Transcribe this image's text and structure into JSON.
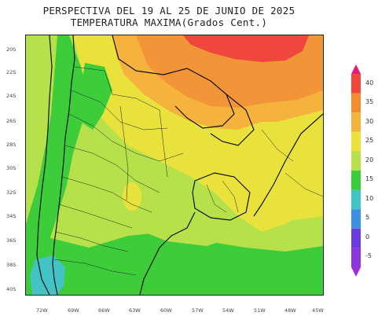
{
  "title": {
    "line1": "PERSPECTIVA DEL 19 AL 25 DE JUNIO DE 2025",
    "line2": "TEMPERATURA MAXIMA(Grados Cent.)"
  },
  "latitude_labels": [
    "20S",
    "22S",
    "24S",
    "26S",
    "28S",
    "30S",
    "32S",
    "34S",
    "36S",
    "38S",
    "40S"
  ],
  "longitude_labels": [
    "72W",
    "69W",
    "66W",
    "63W",
    "60W",
    "57W",
    "54W",
    "51W",
    "48W",
    "45W"
  ],
  "colorbar": {
    "labels": [
      "40",
      "35",
      "30",
      "25",
      "20",
      "15",
      "10",
      "5",
      "0",
      "-5"
    ],
    "colors": [
      "#e6197a",
      "#f0473c",
      "#f28c2f",
      "#f2b43c",
      "#e9e23d",
      "#b7e14a",
      "#3dcc3a",
      "#42c4c4",
      "#3d8fe3",
      "#6a3ce0",
      "#a02fd8"
    ]
  },
  "field_colors": {
    "hot": "#f0473c",
    "orange": "#f29538",
    "light_orange": "#f5b23c",
    "yellow": "#e9e23d",
    "yellow_green": "#b7e14a",
    "green": "#3dcc3a",
    "cyan": "#42c4c4"
  }
}
